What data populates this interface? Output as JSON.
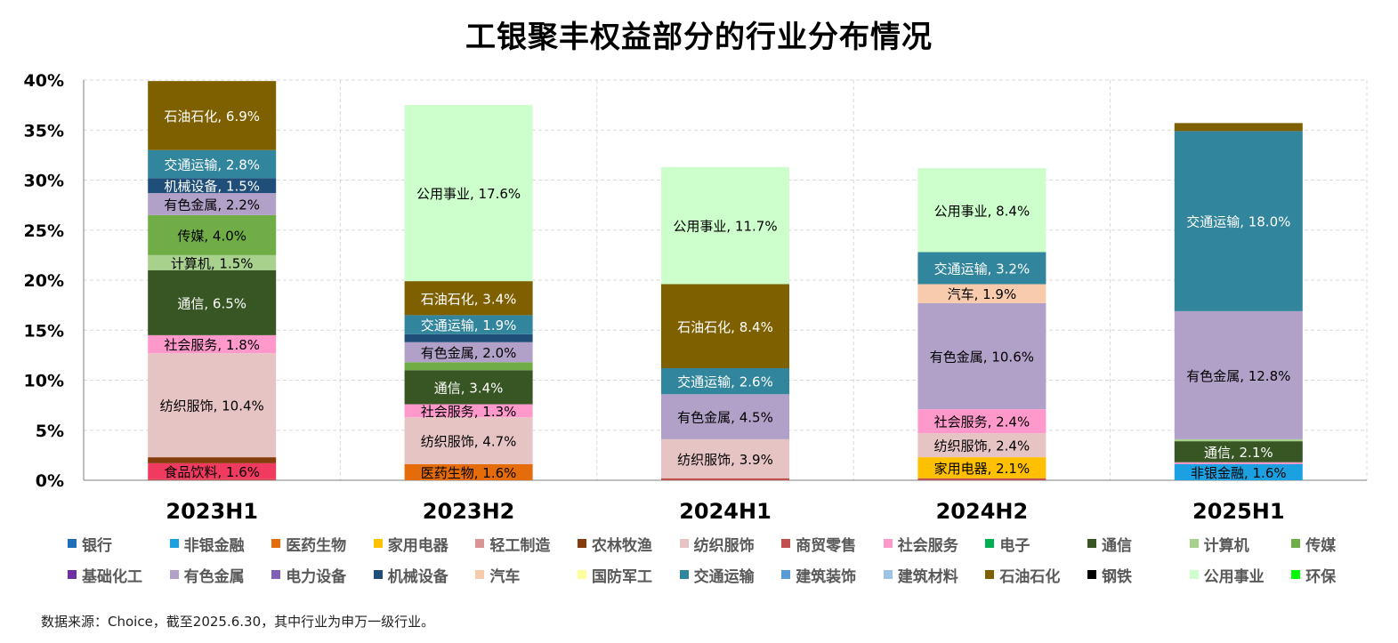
{
  "chart_data": {
    "type": "bar",
    "stacked": true,
    "title": "工银聚丰权益部分的行业分布情况",
    "categories": [
      "2023H1",
      "2023H2",
      "2024H1",
      "2024H2",
      "2025H1"
    ],
    "ylim": [
      0,
      40
    ],
    "y_ticks": [
      "0%",
      "5%",
      "10%",
      "15%",
      "20%",
      "25%",
      "30%",
      "35%",
      "40%"
    ],
    "grid": true,
    "legend_position": "bottom",
    "industries": [
      {
        "name": "银行",
        "color": "#1f6fb8"
      },
      {
        "name": "非银金融",
        "color": "#1ba1e2"
      },
      {
        "name": "医药生物",
        "color": "#e46c0a"
      },
      {
        "name": "家用电器",
        "color": "#ffc000"
      },
      {
        "name": "轻工制造",
        "color": "#d99594"
      },
      {
        "name": "农林牧渔",
        "color": "#843c0c"
      },
      {
        "name": "纺织服饰",
        "color": "#e6c4c4"
      },
      {
        "name": "商贸零售",
        "color": "#c0504d"
      },
      {
        "name": "社会服务",
        "color": "#ff99cc"
      },
      {
        "name": "电子",
        "color": "#00b050"
      },
      {
        "name": "通信",
        "color": "#375623"
      },
      {
        "name": "计算机",
        "color": "#a9d18e"
      },
      {
        "name": "传媒",
        "color": "#70ad47"
      },
      {
        "name": "基础化工",
        "color": "#7030a0"
      },
      {
        "name": "有色金属",
        "color": "#b1a0c7"
      },
      {
        "name": "电力设备",
        "color": "#7f5fb8"
      },
      {
        "name": "机械设备",
        "color": "#1f4e79"
      },
      {
        "name": "汽车",
        "color": "#f8cbad"
      },
      {
        "name": "国防军工",
        "color": "#ffff99"
      },
      {
        "name": "交通运输",
        "color": "#31859c"
      },
      {
        "name": "建筑装饰",
        "color": "#5b9bd5"
      },
      {
        "name": "建筑材料",
        "color": "#9dc3e6"
      },
      {
        "name": "石油石化",
        "color": "#7f6000"
      },
      {
        "name": "钢铁",
        "color": "#000000"
      },
      {
        "name": "公用事业",
        "color": "#ccffcc"
      },
      {
        "name": "环保",
        "color": "#00ff00"
      }
    ],
    "series_values": [
      {
        "category": "2023H1",
        "segments": [
          {
            "industry": "商贸零售",
            "value": 0.1
          },
          {
            "industry": "食品饮料",
            "value": 1.6,
            "color": "#f03a5f",
            "label": "食品饮料, 1.6%"
          },
          {
            "industry": "农林牧渔",
            "value": 0.6
          },
          {
            "industry": "纺织服饰",
            "value": 10.4,
            "label": "纺织服饰, 10.4%"
          },
          {
            "industry": "社会服务",
            "value": 1.8,
            "label": "社会服务, 1.8%"
          },
          {
            "industry": "通信",
            "value": 6.5,
            "label": "通信, 6.5%"
          },
          {
            "industry": "计算机",
            "value": 1.5,
            "label": "计算机, 1.5%"
          },
          {
            "industry": "传媒",
            "value": 4.0,
            "label": "传媒, 4.0%"
          },
          {
            "industry": "有色金属",
            "value": 2.2,
            "label": "有色金属, 2.2%"
          },
          {
            "industry": "机械设备",
            "value": 1.5,
            "label": "机械设备, 1.5%"
          },
          {
            "industry": "交通运输",
            "value": 2.8,
            "label": "交通运输, 2.8%"
          },
          {
            "industry": "石油石化",
            "value": 6.9,
            "label": "石油石化, 6.9%"
          }
        ]
      },
      {
        "category": "2023H2",
        "segments": [
          {
            "industry": "医药生物",
            "value": 1.6,
            "label": "医药生物, 1.6%"
          },
          {
            "industry": "纺织服饰",
            "value": 4.7,
            "label": "纺织服饰, 4.7%"
          },
          {
            "industry": "社会服务",
            "value": 1.3,
            "label": "社会服务, 1.3%"
          },
          {
            "industry": "通信",
            "value": 3.4,
            "label": "通信, 3.4%"
          },
          {
            "industry": "传媒",
            "value": 0.8
          },
          {
            "industry": "有色金属",
            "value": 2.0,
            "label": "有色金属, 2.0%"
          },
          {
            "industry": "机械设备",
            "value": 0.8
          },
          {
            "industry": "交通运输",
            "value": 1.9,
            "label": "交通运输, 1.9%"
          },
          {
            "industry": "石油石化",
            "value": 3.4,
            "label": "石油石化, 3.4%"
          },
          {
            "industry": "公用事业",
            "value": 17.6,
            "label": "公用事业, 17.6%"
          }
        ]
      },
      {
        "category": "2024H1",
        "segments": [
          {
            "industry": "商贸零售",
            "value": 0.2
          },
          {
            "industry": "纺织服饰",
            "value": 3.9,
            "label": "纺织服饰, 3.9%"
          },
          {
            "industry": "有色金属",
            "value": 4.5,
            "label": "有色金属, 4.5%"
          },
          {
            "industry": "交通运输",
            "value": 2.6,
            "label": "交通运输, 2.6%"
          },
          {
            "industry": "石油石化",
            "value": 8.4,
            "label": "石油石化, 8.4%"
          },
          {
            "industry": "公用事业",
            "value": 11.7,
            "label": "公用事业, 11.7%"
          }
        ]
      },
      {
        "category": "2024H2",
        "segments": [
          {
            "industry": "商贸零售",
            "value": 0.2
          },
          {
            "industry": "家用电器",
            "value": 2.1,
            "label": "家用电器, 2.1%"
          },
          {
            "industry": "纺织服饰",
            "value": 2.4,
            "label": "纺织服饰, 2.4%"
          },
          {
            "industry": "社会服务",
            "value": 2.4,
            "label": "社会服务, 2.4%"
          },
          {
            "industry": "有色金属",
            "value": 10.6,
            "label": "有色金属, 10.6%"
          },
          {
            "industry": "汽车",
            "value": 1.9,
            "label": "汽车, 1.9%"
          },
          {
            "industry": "交通运输",
            "value": 3.2,
            "label": "交通运输, 3.2%"
          },
          {
            "industry": "公用事业",
            "value": 8.4,
            "label": "公用事业, 8.4%"
          }
        ]
      },
      {
        "category": "2025H1",
        "segments": [
          {
            "industry": "非银金融",
            "value": 1.6,
            "label": "非银金融, 1.6%"
          },
          {
            "industry": "社会服务",
            "value": 0.2
          },
          {
            "industry": "通信",
            "value": 2.1,
            "label": "通信, 2.1%"
          },
          {
            "industry": "计算机",
            "value": 0.2
          },
          {
            "industry": "有色金属",
            "value": 12.8,
            "label": "有色金属, 12.8%"
          },
          {
            "industry": "交通运输",
            "value": 18.0,
            "label": "交通运输, 18.0%"
          },
          {
            "industry": "石油石化",
            "value": 0.8
          }
        ]
      }
    ]
  },
  "footnote": "数据来源：Choice，截至2025.6.30，其中行业为申万一级行业。"
}
